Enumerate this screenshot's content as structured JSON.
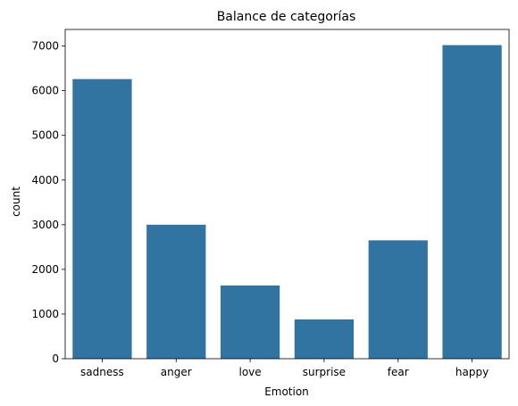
{
  "chart_data": {
    "type": "bar",
    "title": "Balance de categorías",
    "xlabel": "Emotion",
    "ylabel": "count",
    "categories": [
      "sadness",
      "anger",
      "love",
      "surprise",
      "fear",
      "happy"
    ],
    "values": [
      6260,
      3000,
      1640,
      880,
      2650,
      7020
    ],
    "ylim": [
      0,
      7371
    ],
    "yticks": [
      0,
      1000,
      2000,
      3000,
      4000,
      5000,
      6000,
      7000
    ],
    "bar_color": "#3274a1",
    "grid": false,
    "legend": "none"
  }
}
